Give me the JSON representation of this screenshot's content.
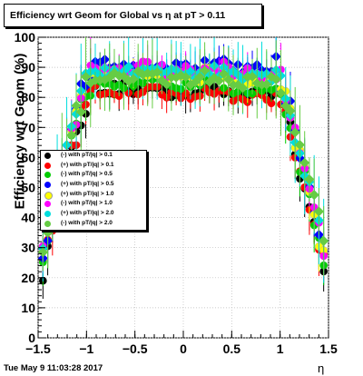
{
  "title": "Efficiency wrt Geom for Global vs   η at pT > 0.11",
  "timestamp": "Tue May  9 11:03:28 2017",
  "chart_data": {
    "type": "scatter",
    "xlabel": "η",
    "ylabel": "Efficiency wrt Geom (%)",
    "xlim": [
      -1.5,
      1.5
    ],
    "ylim": [
      0,
      100
    ],
    "xticks": [
      -1.5,
      -1.0,
      -0.5,
      0.0,
      0.5,
      1.0,
      1.5
    ],
    "xtick_labels": [
      "−1.5",
      "−1",
      "−0.5",
      "0",
      "0.5",
      "1",
      "1.5"
    ],
    "yticks": [
      0,
      10,
      20,
      30,
      40,
      50,
      60,
      70,
      80,
      90,
      100
    ],
    "ytick_labels": [
      "0",
      "10",
      "20",
      "30",
      "40",
      "50",
      "60",
      "70",
      "80",
      "90",
      "100"
    ],
    "grid": true,
    "legend_position": "left-middle",
    "series": [
      {
        "name": "(-) with pT/|q| > 0.1",
        "color": "#000000",
        "plateau": 83,
        "edge": 23
      },
      {
        "name": "(+) with pT/|q| > 0.1",
        "color": "#ff0000",
        "plateau": 82,
        "edge": 24
      },
      {
        "name": "(-) with pT/|q| > 0.5",
        "color": "#00cc00",
        "plateau": 85,
        "edge": 25
      },
      {
        "name": "(+) with pT/|q| > 0.5",
        "color": "#0000ff",
        "plateau": 91,
        "edge": 26
      },
      {
        "name": "(+) with pT/|q| > 1.0",
        "color": "#ffff00",
        "plateau": 88,
        "edge": 27
      },
      {
        "name": "(-) with pT/|q| > 1.0",
        "color": "#ff00ff",
        "plateau": 90,
        "edge": 28
      },
      {
        "name": "(+) with pT/|q| > 2.0",
        "color": "#00dddd",
        "plateau": 89,
        "edge": 30
      },
      {
        "name": "(-) with pT/|q| > 2.0",
        "color": "#66cc44",
        "plateau": 87,
        "edge": 32
      }
    ],
    "legend_label_0": "(-) with pT/|q| > 0.1",
    "legend_label_1": "(+) with pT/|q| > 0.1",
    "legend_label_2": "(-) with pT/|q| > 0.5",
    "legend_label_3": "(+) with pT/|q| > 0.5",
    "legend_label_4": "(+) with pT/|q| > 1.0",
    "legend_label_5": "(-) with pT/|q| > 1.0",
    "legend_label_6": "(+) with pT/|q| > 2.0",
    "legend_label_7": "(-) with pT/|q| > 2.0"
  }
}
